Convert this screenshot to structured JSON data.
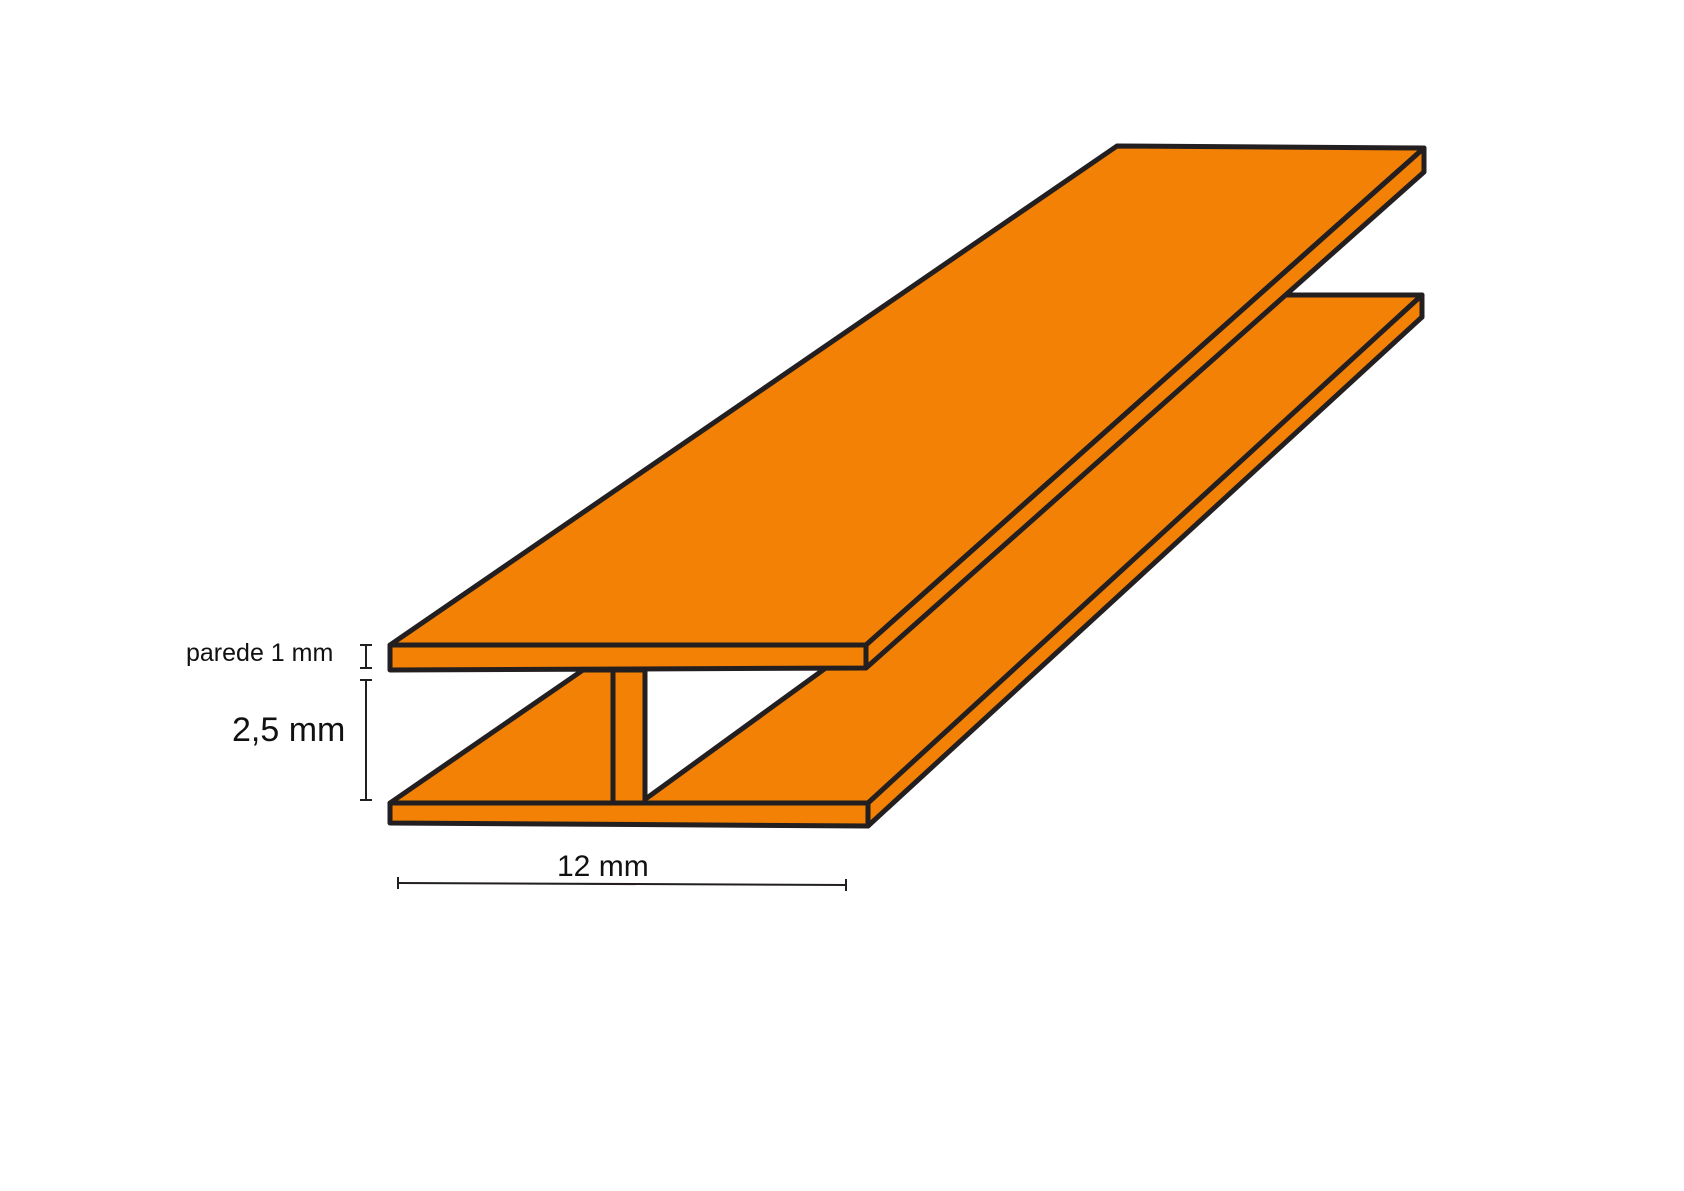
{
  "diagram": {
    "labels": {
      "wall_thickness": "parede 1 mm",
      "height": "2,5 mm",
      "width": "12 mm"
    },
    "colors": {
      "profile_fill": "#F28105",
      "outline": "#231F20",
      "background": "#FFFFFF"
    }
  }
}
